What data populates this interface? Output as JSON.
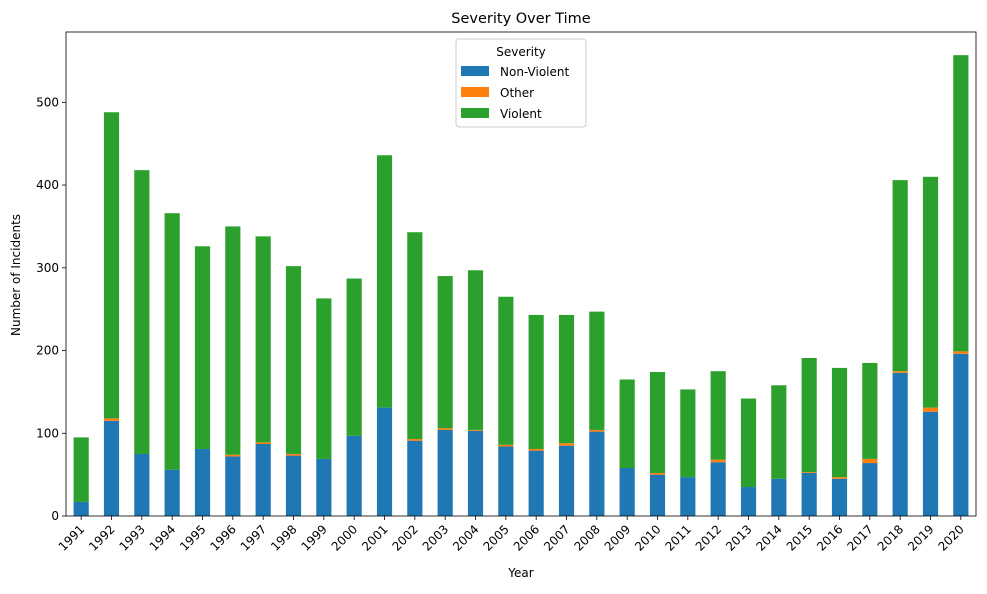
{
  "chart_data": {
    "type": "bar",
    "stacked": true,
    "title": "Severity Over Time",
    "xlabel": "Year",
    "ylabel": "Number of Incidents",
    "ylim": [
      0,
      585
    ],
    "yticks": [
      0,
      100,
      200,
      300,
      400,
      500
    ],
    "categories": [
      "1991",
      "1992",
      "1993",
      "1994",
      "1995",
      "1996",
      "1997",
      "1998",
      "1999",
      "2000",
      "2001",
      "2002",
      "2003",
      "2004",
      "2005",
      "2006",
      "2007",
      "2008",
      "2009",
      "2010",
      "2011",
      "2012",
      "2013",
      "2014",
      "2015",
      "2016",
      "2017",
      "2018",
      "2019",
      "2020"
    ],
    "legend": {
      "title": "Severity",
      "position": "top-center"
    },
    "grid": false,
    "series": [
      {
        "name": "Non-Violent",
        "color": "#1f77b4",
        "values": [
          17,
          115,
          75,
          56,
          81,
          72,
          87,
          73,
          69,
          97,
          131,
          91,
          104,
          103,
          84,
          79,
          85,
          102,
          58,
          50,
          47,
          65,
          35,
          45,
          52,
          45,
          64,
          173,
          126,
          196
        ]
      },
      {
        "name": "Other",
        "color": "#ff7f0e",
        "values": [
          0,
          3,
          0,
          0,
          0,
          2,
          2,
          2,
          0,
          0,
          0,
          2,
          2,
          1,
          2,
          2,
          3,
          2,
          0,
          2,
          0,
          3,
          0,
          0,
          1,
          2,
          5,
          2,
          5,
          3
        ]
      },
      {
        "name": "Violent",
        "color": "#2ca02c",
        "values": [
          78,
          370,
          343,
          310,
          245,
          276,
          249,
          227,
          194,
          190,
          305,
          250,
          184,
          193,
          179,
          162,
          155,
          143,
          107,
          122,
          106,
          107,
          107,
          113,
          138,
          132,
          116,
          231,
          279,
          358
        ]
      }
    ]
  }
}
